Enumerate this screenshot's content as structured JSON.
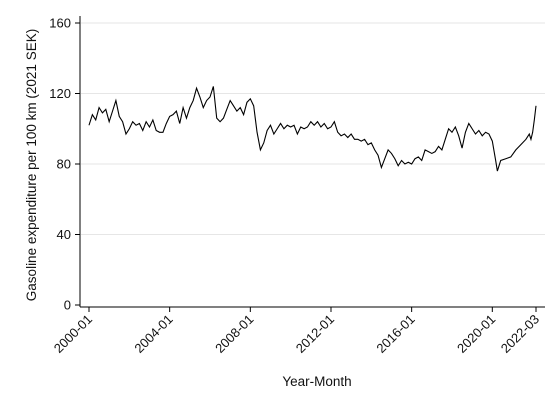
{
  "chart_data": {
    "type": "line",
    "title": "",
    "xlabel": "Year-Month",
    "ylabel": "Gasoline expenditure per 100 km (2021 SEK)",
    "ylim": [
      0,
      160
    ],
    "yticks": [
      0,
      40,
      80,
      120,
      160
    ],
    "xlim": [
      "2000-01",
      "2022-03"
    ],
    "xticks": [
      "2000-01",
      "2004-01",
      "2008-01",
      "2012-01",
      "2016-01",
      "2020-01",
      "2022-03"
    ],
    "grid": "horizontal",
    "legend": "none",
    "line_color": "#000000",
    "grid_color": "#e6e6e6",
    "series": [
      {
        "points": [
          [
            "2000-01",
            102
          ],
          [
            "2000-03",
            108
          ],
          [
            "2000-05",
            105
          ],
          [
            "2000-07",
            112
          ],
          [
            "2000-09",
            109
          ],
          [
            "2000-11",
            111
          ],
          [
            "2001-01",
            104
          ],
          [
            "2001-03",
            110
          ],
          [
            "2001-05",
            116
          ],
          [
            "2001-07",
            107
          ],
          [
            "2001-09",
            104
          ],
          [
            "2001-11",
            97
          ],
          [
            "2002-01",
            100
          ],
          [
            "2002-03",
            104
          ],
          [
            "2002-05",
            102
          ],
          [
            "2002-07",
            103
          ],
          [
            "2002-09",
            99
          ],
          [
            "2002-11",
            104
          ],
          [
            "2003-01",
            101
          ],
          [
            "2003-03",
            105
          ],
          [
            "2003-05",
            99
          ],
          [
            "2003-07",
            98
          ],
          [
            "2003-09",
            98
          ],
          [
            "2003-11",
            103
          ],
          [
            "2004-01",
            107
          ],
          [
            "2004-03",
            108
          ],
          [
            "2004-05",
            110
          ],
          [
            "2004-07",
            103
          ],
          [
            "2004-09",
            112
          ],
          [
            "2004-11",
            106
          ],
          [
            "2005-01",
            112
          ],
          [
            "2005-03",
            116
          ],
          [
            "2005-05",
            123
          ],
          [
            "2005-07",
            118
          ],
          [
            "2005-09",
            112
          ],
          [
            "2005-11",
            116
          ],
          [
            "2006-01",
            118
          ],
          [
            "2006-03",
            124
          ],
          [
            "2006-05",
            106
          ],
          [
            "2006-07",
            104
          ],
          [
            "2006-09",
            106
          ],
          [
            "2006-11",
            111
          ],
          [
            "2007-01",
            116
          ],
          [
            "2007-03",
            113
          ],
          [
            "2007-05",
            110
          ],
          [
            "2007-07",
            112
          ],
          [
            "2007-09",
            108
          ],
          [
            "2007-11",
            115
          ],
          [
            "2008-01",
            117
          ],
          [
            "2008-03",
            113
          ],
          [
            "2008-05",
            98
          ],
          [
            "2008-07",
            88
          ],
          [
            "2008-09",
            92
          ],
          [
            "2008-11",
            99
          ],
          [
            "2009-01",
            102
          ],
          [
            "2009-03",
            97
          ],
          [
            "2009-05",
            100
          ],
          [
            "2009-07",
            103
          ],
          [
            "2009-09",
            100
          ],
          [
            "2009-11",
            102
          ],
          [
            "2010-01",
            101
          ],
          [
            "2010-03",
            102
          ],
          [
            "2010-05",
            97
          ],
          [
            "2010-07",
            101
          ],
          [
            "2010-09",
            100
          ],
          [
            "2010-11",
            101
          ],
          [
            "2011-01",
            104
          ],
          [
            "2011-03",
            102
          ],
          [
            "2011-05",
            104
          ],
          [
            "2011-07",
            101
          ],
          [
            "2011-09",
            103
          ],
          [
            "2011-11",
            100
          ],
          [
            "2012-01",
            101
          ],
          [
            "2012-03",
            104
          ],
          [
            "2012-05",
            98
          ],
          [
            "2012-07",
            96
          ],
          [
            "2012-09",
            97
          ],
          [
            "2012-11",
            95
          ],
          [
            "2013-01",
            97
          ],
          [
            "2013-03",
            94
          ],
          [
            "2013-05",
            94
          ],
          [
            "2013-07",
            93
          ],
          [
            "2013-09",
            94
          ],
          [
            "2013-11",
            91
          ],
          [
            "2014-01",
            92
          ],
          [
            "2014-03",
            88
          ],
          [
            "2014-05",
            85
          ],
          [
            "2014-07",
            78
          ],
          [
            "2014-09",
            83
          ],
          [
            "2014-11",
            88
          ],
          [
            "2015-01",
            86
          ],
          [
            "2015-03",
            83
          ],
          [
            "2015-05",
            79
          ],
          [
            "2015-07",
            82
          ],
          [
            "2015-09",
            80
          ],
          [
            "2015-11",
            81
          ],
          [
            "2016-01",
            80
          ],
          [
            "2016-03",
            83
          ],
          [
            "2016-05",
            84
          ],
          [
            "2016-07",
            82
          ],
          [
            "2016-09",
            88
          ],
          [
            "2016-11",
            87
          ],
          [
            "2017-01",
            86
          ],
          [
            "2017-03",
            87
          ],
          [
            "2017-05",
            90
          ],
          [
            "2017-07",
            88
          ],
          [
            "2017-09",
            94
          ],
          [
            "2017-11",
            100
          ],
          [
            "2018-01",
            98
          ],
          [
            "2018-03",
            101
          ],
          [
            "2018-05",
            96
          ],
          [
            "2018-07",
            89
          ],
          [
            "2018-09",
            98
          ],
          [
            "2018-11",
            103
          ],
          [
            "2019-01",
            100
          ],
          [
            "2019-03",
            97
          ],
          [
            "2019-05",
            99
          ],
          [
            "2019-07",
            96
          ],
          [
            "2019-09",
            98
          ],
          [
            "2019-11",
            97
          ],
          [
            "2020-01",
            93
          ],
          [
            "2020-03",
            82
          ],
          [
            "2020-04",
            76
          ],
          [
            "2020-06",
            82
          ],
          [
            "2020-09",
            83
          ],
          [
            "2020-12",
            84
          ],
          [
            "2021-03",
            88
          ],
          [
            "2021-06",
            91
          ],
          [
            "2021-09",
            94
          ],
          [
            "2021-11",
            97
          ],
          [
            "2021-12",
            94
          ],
          [
            "2022-01",
            98
          ],
          [
            "2022-02",
            105
          ],
          [
            "2022-03",
            113
          ]
        ]
      }
    ]
  }
}
